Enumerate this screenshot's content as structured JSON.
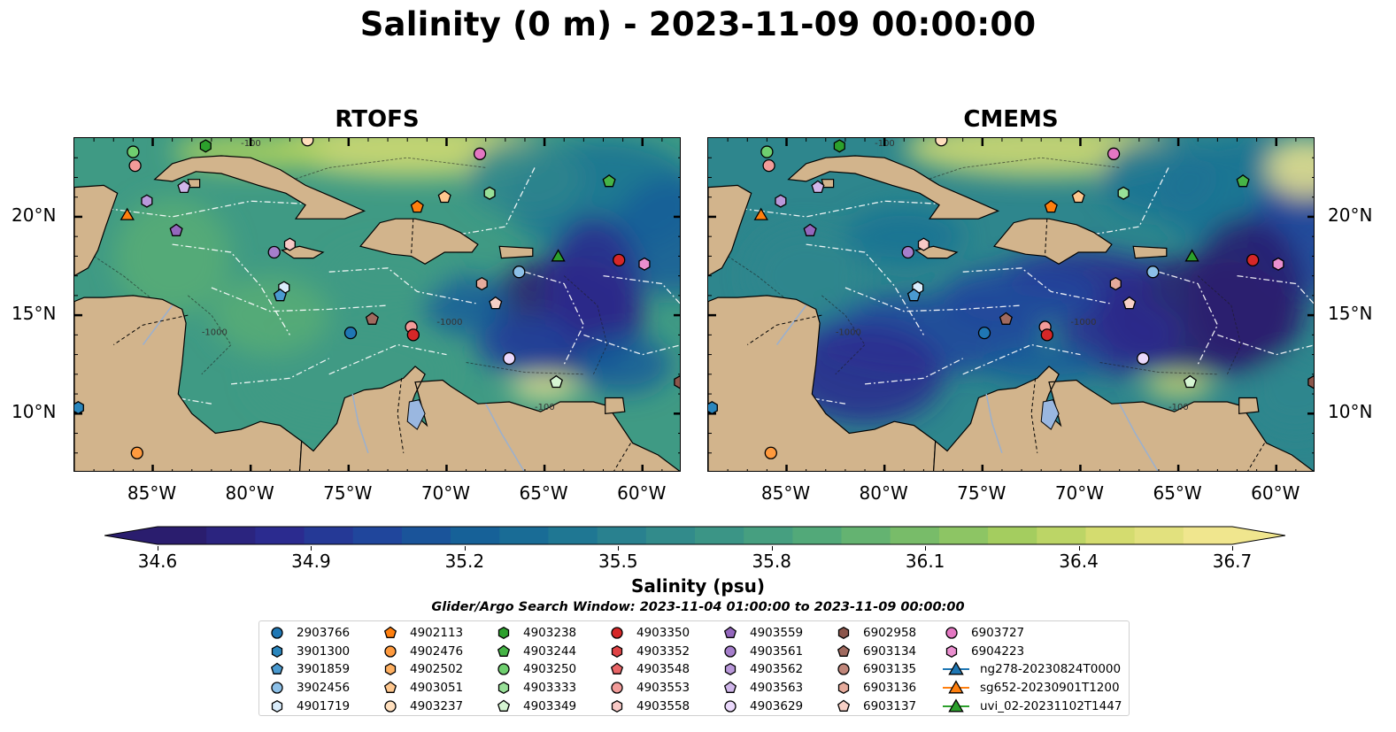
{
  "title": "Salinity (0 m) - 2023-11-09 00:00:00",
  "panels": [
    {
      "title": "RTOFS"
    },
    {
      "title": "CMEMS"
    }
  ],
  "axes": {
    "lon_labels": [
      "85°W",
      "80°W",
      "75°W",
      "70°W",
      "65°W",
      "60°W"
    ],
    "lat_labels": [
      "20°N",
      "15°N",
      "10°N"
    ],
    "lon_range": [
      -89,
      -58
    ],
    "lat_range": [
      7,
      24
    ]
  },
  "contour_labels": [
    "-100",
    "-1000",
    "-100",
    "-1000"
  ],
  "colorbar": {
    "title": "Salinity (psu)",
    "ticks": [
      "34.6",
      "34.9",
      "35.2",
      "35.5",
      "35.8",
      "36.1",
      "36.4",
      "36.7"
    ],
    "min": 34.6,
    "max": 36.7,
    "colormap": "haline",
    "extend": "both"
  },
  "search_window": "Glider/Argo Search Window: 2023-11-04 01:00:00 to 2023-11-09 00:00:00",
  "legend": {
    "columns": [
      [
        {
          "label": "2903766",
          "marker": "circle",
          "color": "#1f77b4"
        },
        {
          "label": "3901300",
          "marker": "hexagon",
          "color": "#2a86bd"
        },
        {
          "label": "3901859",
          "marker": "pentagon",
          "color": "#4a9ad0"
        },
        {
          "label": "3902456",
          "marker": "circle",
          "color": "#8cc0e8"
        },
        {
          "label": "4901719",
          "marker": "hexagon",
          "color": "#d9ecfb"
        }
      ],
      [
        {
          "label": "4902113",
          "marker": "pentagon",
          "color": "#ff7f0e"
        },
        {
          "label": "4902476",
          "marker": "circle",
          "color": "#ff9a3e"
        },
        {
          "label": "4902502",
          "marker": "hexagon",
          "color": "#ffb061"
        },
        {
          "label": "4903051",
          "marker": "pentagon",
          "color": "#ffc78e"
        },
        {
          "label": "4903237",
          "marker": "circle",
          "color": "#ffdfbd"
        }
      ],
      [
        {
          "label": "4903238",
          "marker": "hexagon",
          "color": "#2ca02c"
        },
        {
          "label": "4903244",
          "marker": "pentagon",
          "color": "#46b446"
        },
        {
          "label": "4903250",
          "marker": "circle",
          "color": "#6fcf6f"
        },
        {
          "label": "4903333",
          "marker": "hexagon",
          "color": "#98e098"
        },
        {
          "label": "4903349",
          "marker": "pentagon",
          "color": "#d6f5d2"
        }
      ],
      [
        {
          "label": "4903350",
          "marker": "circle",
          "color": "#d62728"
        },
        {
          "label": "4903352",
          "marker": "hexagon",
          "color": "#e04446"
        },
        {
          "label": "4903548",
          "marker": "pentagon",
          "color": "#ea6567"
        },
        {
          "label": "4903553",
          "marker": "circle",
          "color": "#f29b99"
        },
        {
          "label": "4903558",
          "marker": "hexagon",
          "color": "#f8c9c6"
        }
      ],
      [
        {
          "label": "4903559",
          "marker": "pentagon",
          "color": "#9467bd"
        },
        {
          "label": "4903561",
          "marker": "circle",
          "color": "#a57ecb"
        },
        {
          "label": "4903562",
          "marker": "hexagon",
          "color": "#b998da"
        },
        {
          "label": "4903563",
          "marker": "pentagon",
          "color": "#d0b6ea"
        },
        {
          "label": "4903629",
          "marker": "circle",
          "color": "#ead8fb"
        }
      ],
      [
        {
          "label": "6902958",
          "marker": "hexagon",
          "color": "#8c564b"
        },
        {
          "label": "6903134",
          "marker": "pentagon",
          "color": "#a06a5f"
        },
        {
          "label": "6903135",
          "marker": "circle",
          "color": "#c0867a"
        },
        {
          "label": "6903136",
          "marker": "hexagon",
          "color": "#e6ab9c"
        },
        {
          "label": "6903137",
          "marker": "pentagon",
          "color": "#f7d0c6"
        }
      ],
      [
        {
          "label": "6903727",
          "marker": "circle",
          "color": "#e377c2"
        },
        {
          "label": "6904223",
          "marker": "hexagon",
          "color": "#ea8fcf"
        },
        {
          "label": "ng278-20230824T0000",
          "marker": "triangle-line",
          "color": "#1f77b4"
        },
        {
          "label": "sg652-20230901T1200",
          "marker": "triangle-line",
          "color": "#ff7f0e"
        },
        {
          "label": "uvi_02-20231102T1447",
          "marker": "triangle-line",
          "color": "#2ca02c"
        }
      ]
    ]
  },
  "markers": [
    {
      "lon": -86,
      "lat": 23.3,
      "marker": "circle",
      "color": "#6fcf6f"
    },
    {
      "lon": -85.9,
      "lat": 22.6,
      "marker": "circle",
      "color": "#f29b99"
    },
    {
      "lon": -82.3,
      "lat": 23.6,
      "marker": "hexagon",
      "color": "#2ca02c"
    },
    {
      "lon": -77.1,
      "lat": 23.9,
      "marker": "circle",
      "color": "#ffdfbd"
    },
    {
      "lon": -68.3,
      "lat": 23.2,
      "marker": "circle",
      "color": "#e377c2"
    },
    {
      "lon": -61.7,
      "lat": 21.8,
      "marker": "pentagon",
      "color": "#46b446"
    },
    {
      "lon": -86.3,
      "lat": 20.1,
      "marker": "triangle",
      "color": "#ff7f0e"
    },
    {
      "lon": -85.3,
      "lat": 20.8,
      "marker": "hexagon",
      "color": "#b998da"
    },
    {
      "lon": -83.4,
      "lat": 21.5,
      "marker": "pentagon",
      "color": "#d0b6ea"
    },
    {
      "lon": -83.8,
      "lat": 19.3,
      "marker": "pentagon",
      "color": "#9467bd"
    },
    {
      "lon": -71.5,
      "lat": 20.5,
      "marker": "pentagon",
      "color": "#ff7f0e"
    },
    {
      "lon": -70.1,
      "lat": 21,
      "marker": "pentagon",
      "color": "#ffc78e"
    },
    {
      "lon": -67.8,
      "lat": 21.2,
      "marker": "hexagon",
      "color": "#98e098"
    },
    {
      "lon": -78.8,
      "lat": 18.2,
      "marker": "circle",
      "color": "#a57ecb"
    },
    {
      "lon": -78,
      "lat": 18.6,
      "marker": "hexagon",
      "color": "#f8c9c6"
    },
    {
      "lon": -78.3,
      "lat": 16.4,
      "marker": "hexagon",
      "color": "#d9ecfb"
    },
    {
      "lon": -78.5,
      "lat": 16,
      "marker": "pentagon",
      "color": "#4a9ad0"
    },
    {
      "lon": -66.3,
      "lat": 17.2,
      "marker": "circle",
      "color": "#8cc0e8"
    },
    {
      "lon": -64.3,
      "lat": 18,
      "marker": "triangle",
      "color": "#2ca02c"
    },
    {
      "lon": -61.2,
      "lat": 17.8,
      "marker": "circle",
      "color": "#d62728"
    },
    {
      "lon": -59.9,
      "lat": 17.6,
      "marker": "hexagon",
      "color": "#ea8fcf"
    },
    {
      "lon": -68.2,
      "lat": 16.6,
      "marker": "hexagon",
      "color": "#e6ab9c"
    },
    {
      "lon": -67.5,
      "lat": 15.6,
      "marker": "pentagon",
      "color": "#f7d0c6"
    },
    {
      "lon": -73.8,
      "lat": 14.8,
      "marker": "pentagon",
      "color": "#a06a5f"
    },
    {
      "lon": -74.9,
      "lat": 14.1,
      "marker": "circle",
      "color": "#1f77b4"
    },
    {
      "lon": -71.8,
      "lat": 14.4,
      "marker": "circle",
      "color": "#f29b99"
    },
    {
      "lon": -71.7,
      "lat": 14.0,
      "marker": "circle",
      "color": "#d62728"
    },
    {
      "lon": -66.8,
      "lat": 12.8,
      "marker": "circle",
      "color": "#ead8fb"
    },
    {
      "lon": -64.4,
      "lat": 11.6,
      "marker": "pentagon",
      "color": "#d6f5d2"
    },
    {
      "lon": -58.1,
      "lat": 11.6,
      "marker": "hexagon",
      "color": "#8c564b"
    },
    {
      "lon": -88.8,
      "lat": 10.3,
      "marker": "hexagon",
      "color": "#2a86bd"
    },
    {
      "lon": -85.8,
      "lat": 8.0,
      "marker": "circle",
      "color": "#ff9a3e"
    }
  ]
}
